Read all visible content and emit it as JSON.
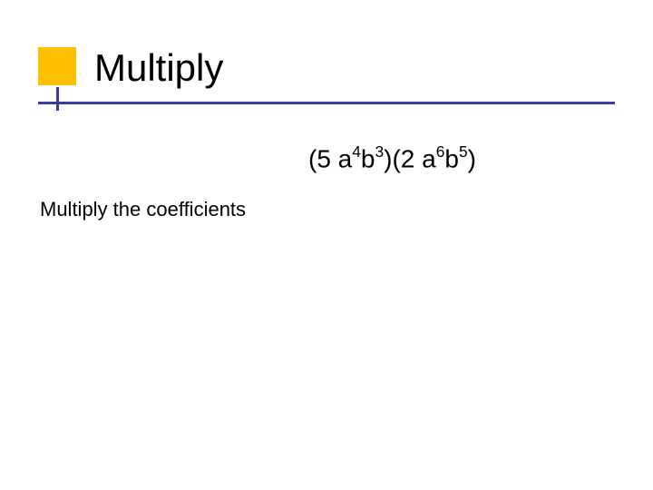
{
  "slide": {
    "title": "Multiply",
    "expression_parts": {
      "p1": "(5 a",
      "e1": "4",
      "p2": "b",
      "e2": "3",
      "p3": ")(2 a",
      "e3": "6",
      "p4": "b",
      "e4": "5",
      "p5": ")"
    },
    "instruction": "Multiply the coefficients"
  },
  "style": {
    "accent_color": "#febf01",
    "underline_color": "#3f3d8f",
    "tick_color": "#3f3d8f",
    "background_color": "#ffffff",
    "title_fontsize": 42,
    "expression_fontsize": 28,
    "instruction_fontsize": 22,
    "text_color": "#000000"
  }
}
